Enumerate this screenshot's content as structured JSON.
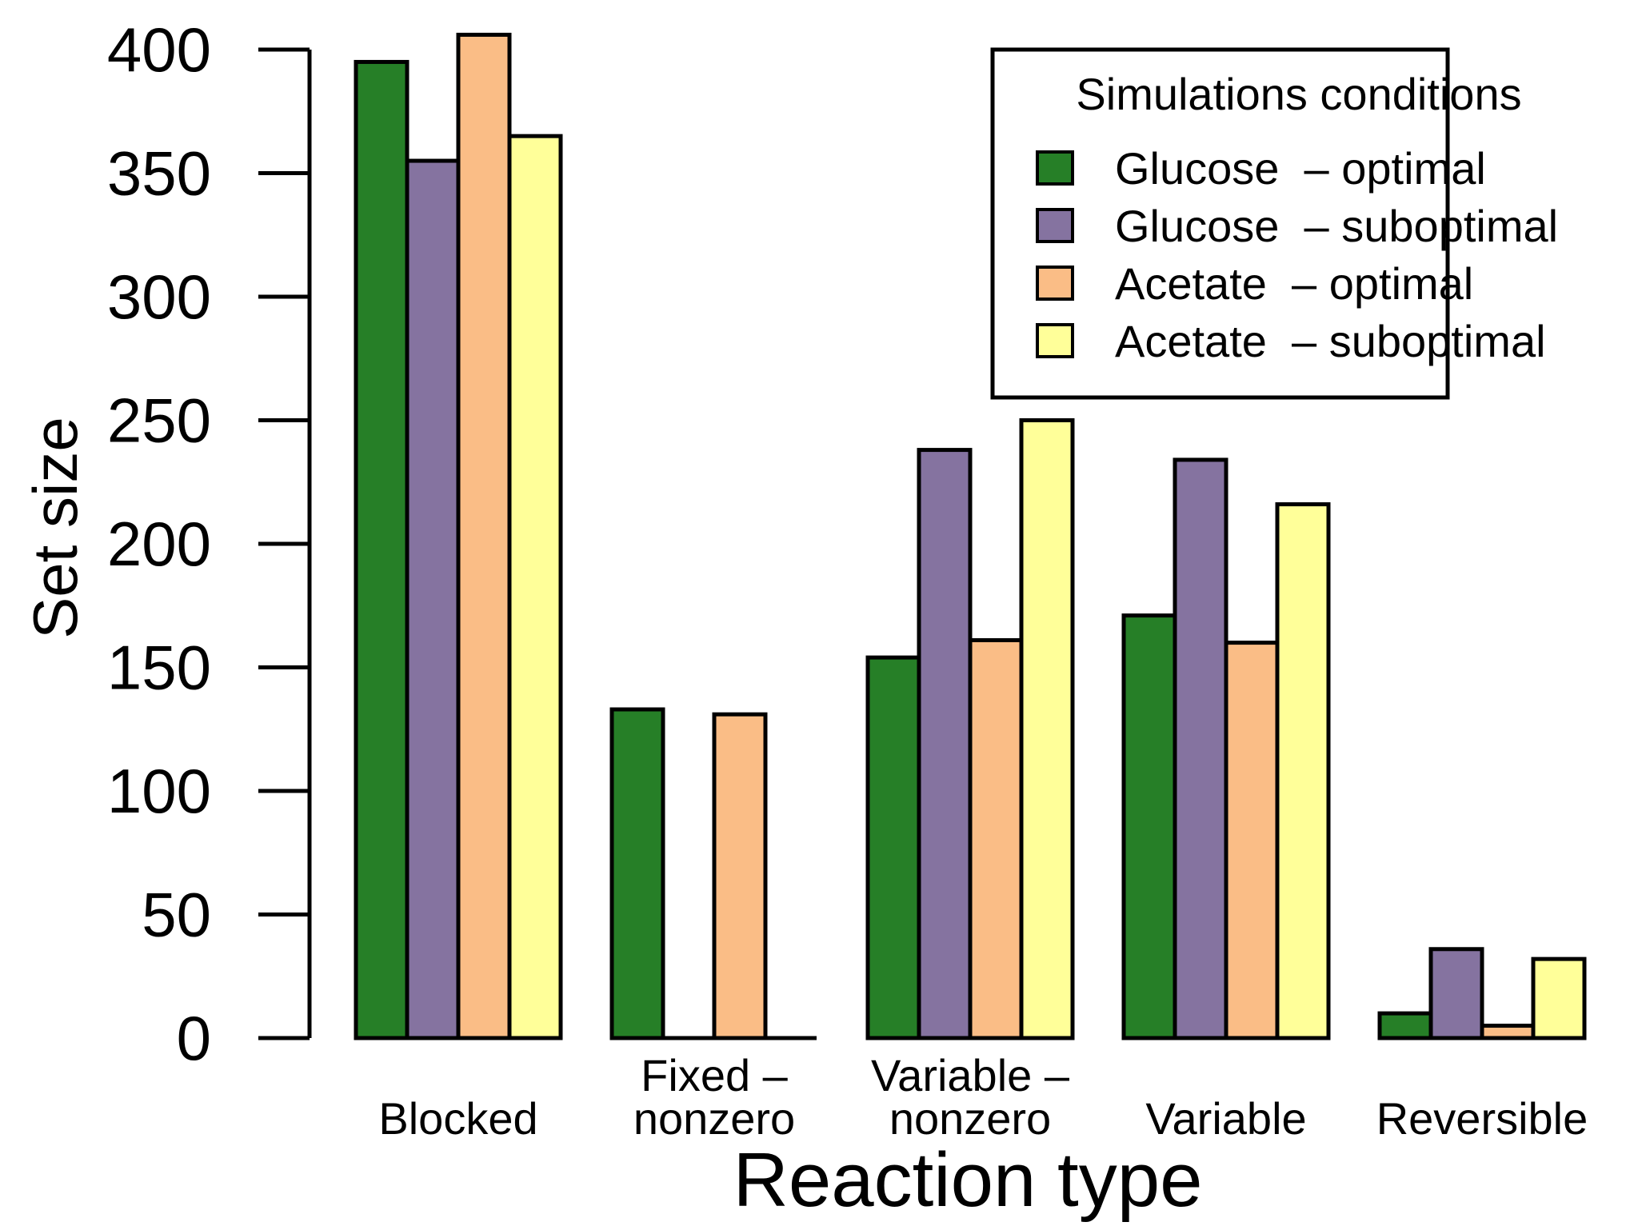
{
  "chart_data": {
    "type": "bar",
    "title": "",
    "xlabel": "Reaction type",
    "ylabel": "Set size",
    "ylim": [
      0,
      400
    ],
    "yticks": [
      0,
      50,
      100,
      150,
      200,
      250,
      300,
      350,
      400
    ],
    "categories": [
      [
        "Blocked"
      ],
      [
        "Fixed –",
        "nonzero"
      ],
      [
        "Variable –",
        "nonzero"
      ],
      [
        "Variable"
      ],
      [
        "Reversible"
      ]
    ],
    "series": [
      {
        "name": "Glucose  – optimal",
        "color": "#267F27",
        "values": [
          395,
          133,
          154,
          171,
          10
        ]
      },
      {
        "name": "Glucose  – suboptimal",
        "color": "#8573A0",
        "values": [
          355,
          0,
          238,
          234,
          36
        ]
      },
      {
        "name": "Acetate  – optimal",
        "color": "#FABD86",
        "values": [
          406,
          131,
          161,
          160,
          5
        ]
      },
      {
        "name": "Acetate  – suboptimal",
        "color": "#FFFF99",
        "values": [
          365,
          0,
          250,
          216,
          32
        ]
      }
    ],
    "legend": {
      "title": "Simulations conditions",
      "position": "top-right"
    },
    "grid": false
  }
}
